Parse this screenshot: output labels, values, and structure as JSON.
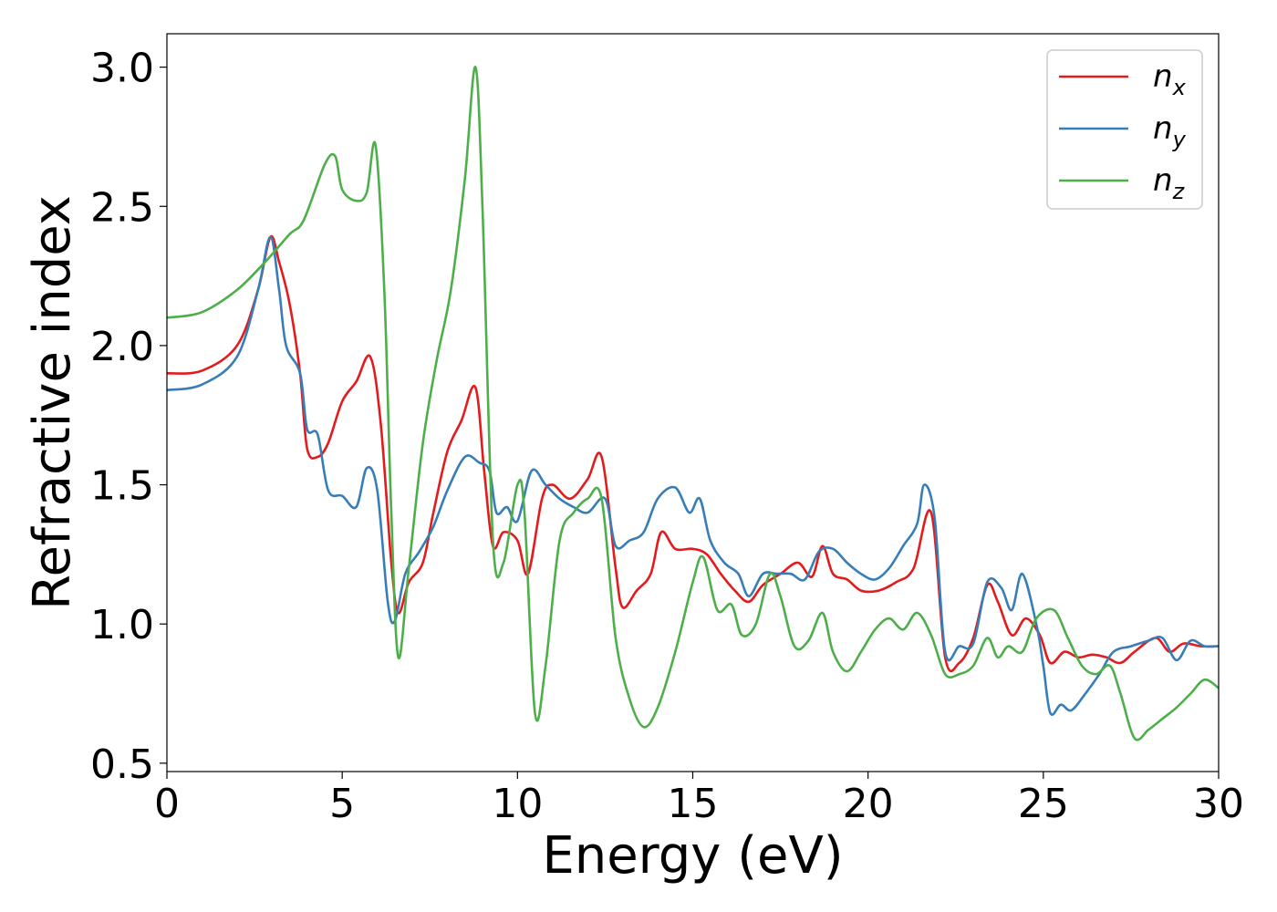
{
  "chart_data": {
    "type": "line",
    "title": "",
    "xlabel": "Energy (eV)",
    "ylabel": "Refractive index",
    "xlim": [
      0,
      30
    ],
    "ylim": [
      0.47,
      3.12
    ],
    "xticks": [
      0,
      5,
      10,
      15,
      20,
      25,
      30
    ],
    "yticks": [
      0.5,
      1.0,
      1.5,
      2.0,
      2.5,
      3.0
    ],
    "xtick_labels": [
      "0",
      "5",
      "10",
      "15",
      "20",
      "25",
      "30"
    ],
    "ytick_labels": [
      "0.5",
      "1.0",
      "1.5",
      "2.0",
      "2.5",
      "3.0"
    ],
    "grid": false,
    "legend_position": "top-right",
    "series": [
      {
        "name": "nx",
        "label_base": "n",
        "label_sub": "x",
        "color": "#e41a1c",
        "points": [
          [
            0,
            1.9
          ],
          [
            1,
            1.91
          ],
          [
            2,
            2.0
          ],
          [
            2.6,
            2.2
          ],
          [
            2.95,
            2.39
          ],
          [
            3.2,
            2.3
          ],
          [
            3.5,
            2.15
          ],
          [
            3.8,
            1.9
          ],
          [
            4.0,
            1.63
          ],
          [
            4.3,
            1.6
          ],
          [
            4.6,
            1.65
          ],
          [
            5.0,
            1.8
          ],
          [
            5.4,
            1.87
          ],
          [
            5.8,
            1.96
          ],
          [
            6.1,
            1.72
          ],
          [
            6.4,
            1.22
          ],
          [
            6.6,
            1.04
          ],
          [
            6.9,
            1.15
          ],
          [
            7.3,
            1.22
          ],
          [
            7.6,
            1.4
          ],
          [
            8.0,
            1.62
          ],
          [
            8.4,
            1.73
          ],
          [
            8.8,
            1.85
          ],
          [
            9.05,
            1.55
          ],
          [
            9.3,
            1.28
          ],
          [
            9.6,
            1.33
          ],
          [
            10.0,
            1.3
          ],
          [
            10.3,
            1.18
          ],
          [
            10.7,
            1.45
          ],
          [
            11.0,
            1.5
          ],
          [
            11.5,
            1.45
          ],
          [
            12.0,
            1.52
          ],
          [
            12.4,
            1.6
          ],
          [
            12.8,
            1.2
          ],
          [
            13.0,
            1.06
          ],
          [
            13.4,
            1.12
          ],
          [
            13.8,
            1.18
          ],
          [
            14.1,
            1.33
          ],
          [
            14.5,
            1.27
          ],
          [
            15.0,
            1.27
          ],
          [
            15.4,
            1.25
          ],
          [
            15.8,
            1.18
          ],
          [
            16.2,
            1.12
          ],
          [
            16.6,
            1.08
          ],
          [
            17.0,
            1.14
          ],
          [
            17.5,
            1.18
          ],
          [
            18.0,
            1.22
          ],
          [
            18.4,
            1.17
          ],
          [
            18.7,
            1.28
          ],
          [
            19.0,
            1.18
          ],
          [
            19.4,
            1.16
          ],
          [
            19.8,
            1.12
          ],
          [
            20.3,
            1.12
          ],
          [
            20.8,
            1.15
          ],
          [
            21.3,
            1.2
          ],
          [
            21.8,
            1.4
          ],
          [
            22.2,
            0.88
          ],
          [
            22.6,
            0.86
          ],
          [
            23.0,
            0.95
          ],
          [
            23.4,
            1.14
          ],
          [
            23.7,
            1.08
          ],
          [
            24.1,
            0.96
          ],
          [
            24.5,
            1.02
          ],
          [
            24.9,
            0.96
          ],
          [
            25.2,
            0.86
          ],
          [
            25.6,
            0.9
          ],
          [
            26.0,
            0.88
          ],
          [
            26.4,
            0.89
          ],
          [
            26.8,
            0.88
          ],
          [
            27.2,
            0.86
          ],
          [
            27.6,
            0.9
          ],
          [
            28.2,
            0.95
          ],
          [
            28.6,
            0.9
          ],
          [
            29.0,
            0.93
          ],
          [
            29.5,
            0.92
          ],
          [
            30,
            0.92
          ]
        ]
      },
      {
        "name": "ny",
        "label_base": "n",
        "label_sub": "y",
        "color": "#377eb8",
        "points": [
          [
            0,
            1.84
          ],
          [
            1,
            1.86
          ],
          [
            2,
            1.96
          ],
          [
            2.6,
            2.2
          ],
          [
            2.95,
            2.39
          ],
          [
            3.2,
            2.2
          ],
          [
            3.4,
            2.0
          ],
          [
            3.8,
            1.9
          ],
          [
            4.0,
            1.7
          ],
          [
            4.3,
            1.68
          ],
          [
            4.6,
            1.48
          ],
          [
            5.0,
            1.46
          ],
          [
            5.4,
            1.42
          ],
          [
            5.7,
            1.56
          ],
          [
            6.0,
            1.48
          ],
          [
            6.3,
            1.08
          ],
          [
            6.5,
            1.01
          ],
          [
            6.8,
            1.18
          ],
          [
            7.2,
            1.26
          ],
          [
            7.6,
            1.35
          ],
          [
            8.0,
            1.48
          ],
          [
            8.5,
            1.6
          ],
          [
            8.9,
            1.58
          ],
          [
            9.2,
            1.55
          ],
          [
            9.4,
            1.4
          ],
          [
            9.7,
            1.42
          ],
          [
            10.0,
            1.37
          ],
          [
            10.4,
            1.55
          ],
          [
            10.8,
            1.5
          ],
          [
            11.2,
            1.45
          ],
          [
            11.6,
            1.42
          ],
          [
            12.0,
            1.4
          ],
          [
            12.5,
            1.45
          ],
          [
            12.8,
            1.28
          ],
          [
            13.2,
            1.3
          ],
          [
            13.6,
            1.33
          ],
          [
            14.0,
            1.45
          ],
          [
            14.5,
            1.49
          ],
          [
            14.9,
            1.4
          ],
          [
            15.2,
            1.45
          ],
          [
            15.5,
            1.3
          ],
          [
            15.9,
            1.22
          ],
          [
            16.3,
            1.18
          ],
          [
            16.6,
            1.1
          ],
          [
            17.0,
            1.18
          ],
          [
            17.4,
            1.18
          ],
          [
            17.8,
            1.18
          ],
          [
            18.2,
            1.16
          ],
          [
            18.6,
            1.26
          ],
          [
            19.0,
            1.27
          ],
          [
            19.4,
            1.22
          ],
          [
            19.8,
            1.18
          ],
          [
            20.2,
            1.16
          ],
          [
            20.6,
            1.2
          ],
          [
            21.0,
            1.28
          ],
          [
            21.4,
            1.36
          ],
          [
            21.6,
            1.5
          ],
          [
            21.9,
            1.38
          ],
          [
            22.2,
            0.9
          ],
          [
            22.6,
            0.92
          ],
          [
            23.0,
            0.93
          ],
          [
            23.4,
            1.15
          ],
          [
            23.8,
            1.13
          ],
          [
            24.1,
            1.05
          ],
          [
            24.4,
            1.18
          ],
          [
            24.8,
            1.0
          ],
          [
            25.0,
            0.85
          ],
          [
            25.2,
            0.68
          ],
          [
            25.5,
            0.71
          ],
          [
            25.8,
            0.69
          ],
          [
            26.2,
            0.75
          ],
          [
            26.6,
            0.82
          ],
          [
            27.0,
            0.9
          ],
          [
            27.5,
            0.92
          ],
          [
            28.0,
            0.94
          ],
          [
            28.4,
            0.95
          ],
          [
            28.8,
            0.87
          ],
          [
            29.2,
            0.94
          ],
          [
            29.6,
            0.92
          ],
          [
            30,
            0.92
          ]
        ]
      },
      {
        "name": "nz",
        "label_base": "n",
        "label_sub": "z",
        "color": "#4daf4a",
        "points": [
          [
            0,
            2.1
          ],
          [
            1,
            2.12
          ],
          [
            2,
            2.2
          ],
          [
            2.8,
            2.3
          ],
          [
            3.5,
            2.4
          ],
          [
            3.9,
            2.45
          ],
          [
            4.5,
            2.65
          ],
          [
            4.8,
            2.68
          ],
          [
            5.0,
            2.56
          ],
          [
            5.4,
            2.52
          ],
          [
            5.7,
            2.55
          ],
          [
            5.95,
            2.72
          ],
          [
            6.2,
            2.2
          ],
          [
            6.4,
            1.4
          ],
          [
            6.6,
            0.88
          ],
          [
            6.9,
            1.2
          ],
          [
            7.3,
            1.65
          ],
          [
            7.7,
            1.95
          ],
          [
            8.1,
            2.2
          ],
          [
            8.5,
            2.6
          ],
          [
            8.8,
            3.0
          ],
          [
            9.0,
            2.5
          ],
          [
            9.3,
            1.3
          ],
          [
            9.6,
            1.22
          ],
          [
            10.0,
            1.5
          ],
          [
            10.2,
            1.4
          ],
          [
            10.5,
            0.68
          ],
          [
            10.8,
            0.85
          ],
          [
            11.2,
            1.3
          ],
          [
            11.6,
            1.4
          ],
          [
            12.0,
            1.45
          ],
          [
            12.4,
            1.45
          ],
          [
            12.8,
            0.95
          ],
          [
            13.2,
            0.73
          ],
          [
            13.6,
            0.63
          ],
          [
            14.0,
            0.7
          ],
          [
            14.5,
            0.9
          ],
          [
            15.0,
            1.15
          ],
          [
            15.3,
            1.24
          ],
          [
            15.7,
            1.05
          ],
          [
            16.1,
            1.07
          ],
          [
            16.4,
            0.96
          ],
          [
            16.8,
            1.0
          ],
          [
            17.2,
            1.18
          ],
          [
            17.5,
            1.1
          ],
          [
            17.9,
            0.92
          ],
          [
            18.3,
            0.94
          ],
          [
            18.7,
            1.04
          ],
          [
            19.0,
            0.9
          ],
          [
            19.4,
            0.83
          ],
          [
            19.8,
            0.9
          ],
          [
            20.2,
            0.98
          ],
          [
            20.6,
            1.02
          ],
          [
            21.0,
            0.98
          ],
          [
            21.4,
            1.04
          ],
          [
            21.8,
            0.96
          ],
          [
            22.2,
            0.82
          ],
          [
            22.6,
            0.82
          ],
          [
            23.0,
            0.85
          ],
          [
            23.4,
            0.95
          ],
          [
            23.7,
            0.88
          ],
          [
            24.0,
            0.92
          ],
          [
            24.4,
            0.9
          ],
          [
            24.8,
            1.02
          ],
          [
            25.3,
            1.05
          ],
          [
            25.7,
            0.95
          ],
          [
            26.1,
            0.85
          ],
          [
            26.5,
            0.82
          ],
          [
            26.9,
            0.85
          ],
          [
            27.2,
            0.75
          ],
          [
            27.6,
            0.59
          ],
          [
            28.0,
            0.62
          ],
          [
            28.4,
            0.66
          ],
          [
            28.8,
            0.7
          ],
          [
            29.2,
            0.75
          ],
          [
            29.6,
            0.8
          ],
          [
            30,
            0.77
          ]
        ]
      }
    ]
  }
}
